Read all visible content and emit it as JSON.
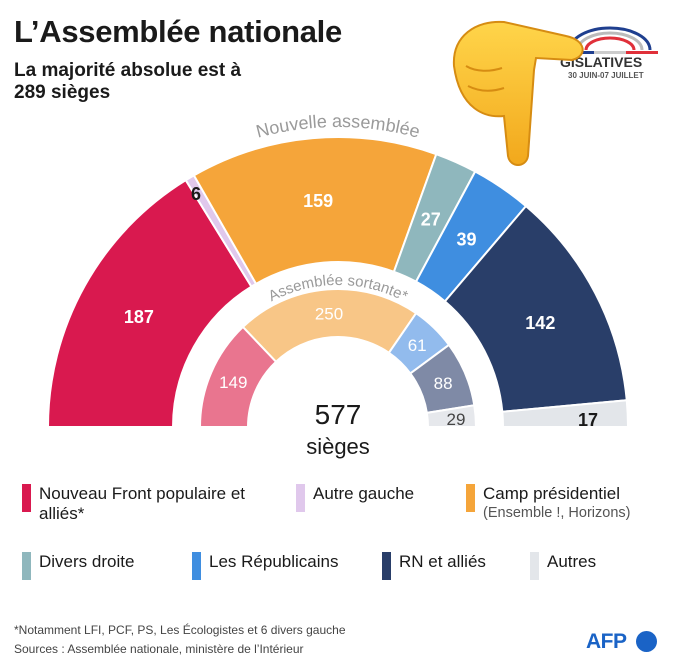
{
  "header": {
    "title": "L’Assemblée nationale",
    "subtitle": "La majorité absolue est à 289 sièges"
  },
  "logo": {
    "text": "GISLATIVES",
    "date": "30 JUIN-07 JUILLET"
  },
  "chart_data": {
    "type": "pie",
    "subtype": "parliament-semicircle",
    "total_label": "577",
    "total_sub": "sièges",
    "outer_ring": {
      "label": "Nouvelle assemblée",
      "series": [
        {
          "party": "Nouveau Front populaire et alliés*",
          "seats": 187,
          "color": "#d9194f"
        },
        {
          "party": "Autre gauche",
          "seats": 6,
          "color": "#e0c8ec"
        },
        {
          "party": "Camp présidentiel",
          "seats": 159,
          "color": "#f5a53a"
        },
        {
          "party": "Divers droite",
          "seats": 27,
          "color": "#8fb7bd"
        },
        {
          "party": "Les Républicains",
          "seats": 39,
          "color": "#3f8ee0"
        },
        {
          "party": "RN et alliés",
          "seats": 142,
          "color": "#293e69"
        },
        {
          "party": "Autres",
          "seats": 17,
          "color": "#e3e6ea"
        }
      ]
    },
    "inner_ring": {
      "label": "Assemblée sortante*",
      "series": [
        {
          "party": "Nouveau Front populaire et alliés*",
          "seats": 149,
          "color": "#e9758f"
        },
        {
          "party": "Camp présidentiel",
          "seats": 250,
          "color": "#f8c687"
        },
        {
          "party": "Les Républicains",
          "seats": 61,
          "color": "#92bbed"
        },
        {
          "party": "RN et alliés",
          "seats": 88,
          "color": "#7f8aa6"
        },
        {
          "party": "Autres",
          "seats": 29,
          "color": "#e6e8ec"
        }
      ]
    }
  },
  "legend": [
    {
      "label": "Nouveau Front populaire et alliés*",
      "sub": "",
      "color": "#d9194f"
    },
    {
      "label": "Autre gauche",
      "sub": "",
      "color": "#e0c8ec"
    },
    {
      "label": "Camp présidentiel",
      "sub": "(Ensemble !, Horizons)",
      "color": "#f5a53a"
    },
    {
      "label": "Divers droite",
      "sub": "",
      "color": "#8fb7bd"
    },
    {
      "label": "Les Républicains",
      "sub": "",
      "color": "#3f8ee0"
    },
    {
      "label": "RN et alliés",
      "sub": "",
      "color": "#293e69"
    },
    {
      "label": "Autres",
      "sub": "",
      "color": "#e3e6ea"
    }
  ],
  "footnotes": {
    "note": "*Notamment LFI, PCF, PS, Les Écologistes et 6 divers gauche",
    "sources": "Sources : Assemblée nationale, ministère de l’Intérieur"
  },
  "brand": "AFP"
}
